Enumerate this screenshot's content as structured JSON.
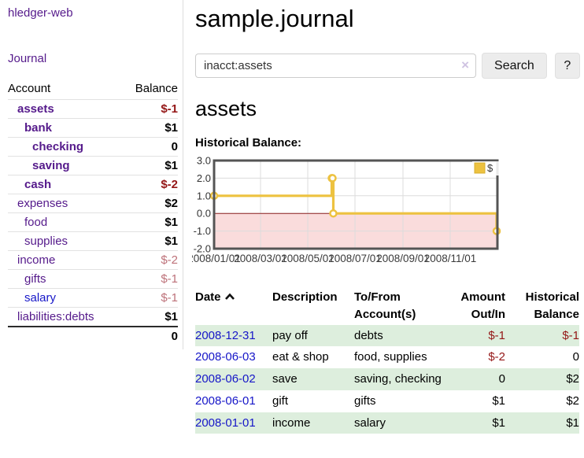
{
  "colors": {
    "purple": "#551a8b",
    "link_blue": "#1616c8",
    "neg": "#941616",
    "neg_soft": "#bd7179",
    "row_green": "#ddeedd",
    "gold": "#edc240",
    "gold_border": "#d8af2c",
    "pink": "#fadcdc",
    "zero": "#8e1f1f",
    "chart_border": "#545454",
    "grid": "#dcdcdc"
  },
  "sidebar": {
    "brand": "hledger-web",
    "nav_journal": "Journal",
    "headers": {
      "account": "Account",
      "balance": "Balance"
    },
    "accounts": [
      {
        "name": "assets",
        "balance": "$-1"
      },
      {
        "name": "bank",
        "balance": "$1"
      },
      {
        "name": "checking",
        "balance": "0"
      },
      {
        "name": "saving",
        "balance": "$1"
      },
      {
        "name": "cash",
        "balance": "$-2"
      },
      {
        "name": "expenses",
        "balance": "$2"
      },
      {
        "name": "food",
        "balance": "$1"
      },
      {
        "name": "supplies",
        "balance": "$1"
      },
      {
        "name": "income",
        "balance": "$-2"
      },
      {
        "name": "gifts",
        "balance": "$-1"
      },
      {
        "name": "salary",
        "balance": "$-1"
      },
      {
        "name": "liabilities:debts",
        "balance": "$1"
      }
    ],
    "total": "0"
  },
  "header": {
    "title": "sample.journal"
  },
  "search": {
    "value": "inacct:assets",
    "clear_icon": "×",
    "search_label": "Search",
    "help_label": "?"
  },
  "account_page": {
    "title": "assets",
    "chart_label": "Historical Balance:"
  },
  "chart_data": {
    "type": "line",
    "title": "Historical Balance",
    "step": true,
    "grid": true,
    "legend": [
      "$"
    ],
    "legend_position": "top-right",
    "ylim": [
      -2,
      3
    ],
    "ytick_labels": [
      "3.0",
      "2.0",
      "1.0",
      "0.0",
      "-1.0",
      "-2.0"
    ],
    "yticks": [
      3,
      2,
      1,
      0,
      -1,
      -2
    ],
    "xrange": [
      "2008-01-01",
      "2009-01-01"
    ],
    "xticks": [
      "2008-01-01",
      "2008-03-01",
      "2008-05-01",
      "2008-07-01",
      "2008-09-01",
      "2008-11-01"
    ],
    "xtick_labels": [
      "2008/01/01",
      "2008/03/01",
      "2008/05/01",
      "2008/07/01",
      "2008/09/01",
      "2008/11/01"
    ],
    "negative_region_below": 0,
    "series": [
      {
        "name": "$",
        "points": [
          [
            "2008-01-01",
            1
          ],
          [
            "2008-06-01",
            2
          ],
          [
            "2008-06-02",
            2
          ],
          [
            "2008-06-03",
            0
          ],
          [
            "2008-12-31",
            -1
          ]
        ]
      }
    ]
  },
  "register": {
    "headers": {
      "date": "Date",
      "description": "Description",
      "accounts_l1": "To/From",
      "accounts_l2": "Account(s)",
      "amount_l1": "Amount",
      "amount_l2": "Out/In",
      "balance_l1": "Historical",
      "balance_l2": "Balance"
    },
    "rows": [
      {
        "date": "2008-12-31",
        "description": "pay off",
        "accounts": "debts",
        "amount": "$-1",
        "balance": "$-1"
      },
      {
        "date": "2008-06-03",
        "description": "eat & shop",
        "accounts": "food, supplies",
        "amount": "$-2",
        "balance": "0"
      },
      {
        "date": "2008-06-02",
        "description": "save",
        "accounts": "saving, checking",
        "amount": "0",
        "balance": "$2"
      },
      {
        "date": "2008-06-01",
        "description": "gift",
        "accounts": "gifts",
        "amount": "$1",
        "balance": "$2"
      },
      {
        "date": "2008-01-01",
        "description": "income",
        "accounts": "salary",
        "amount": "$1",
        "balance": "$1"
      }
    ]
  }
}
